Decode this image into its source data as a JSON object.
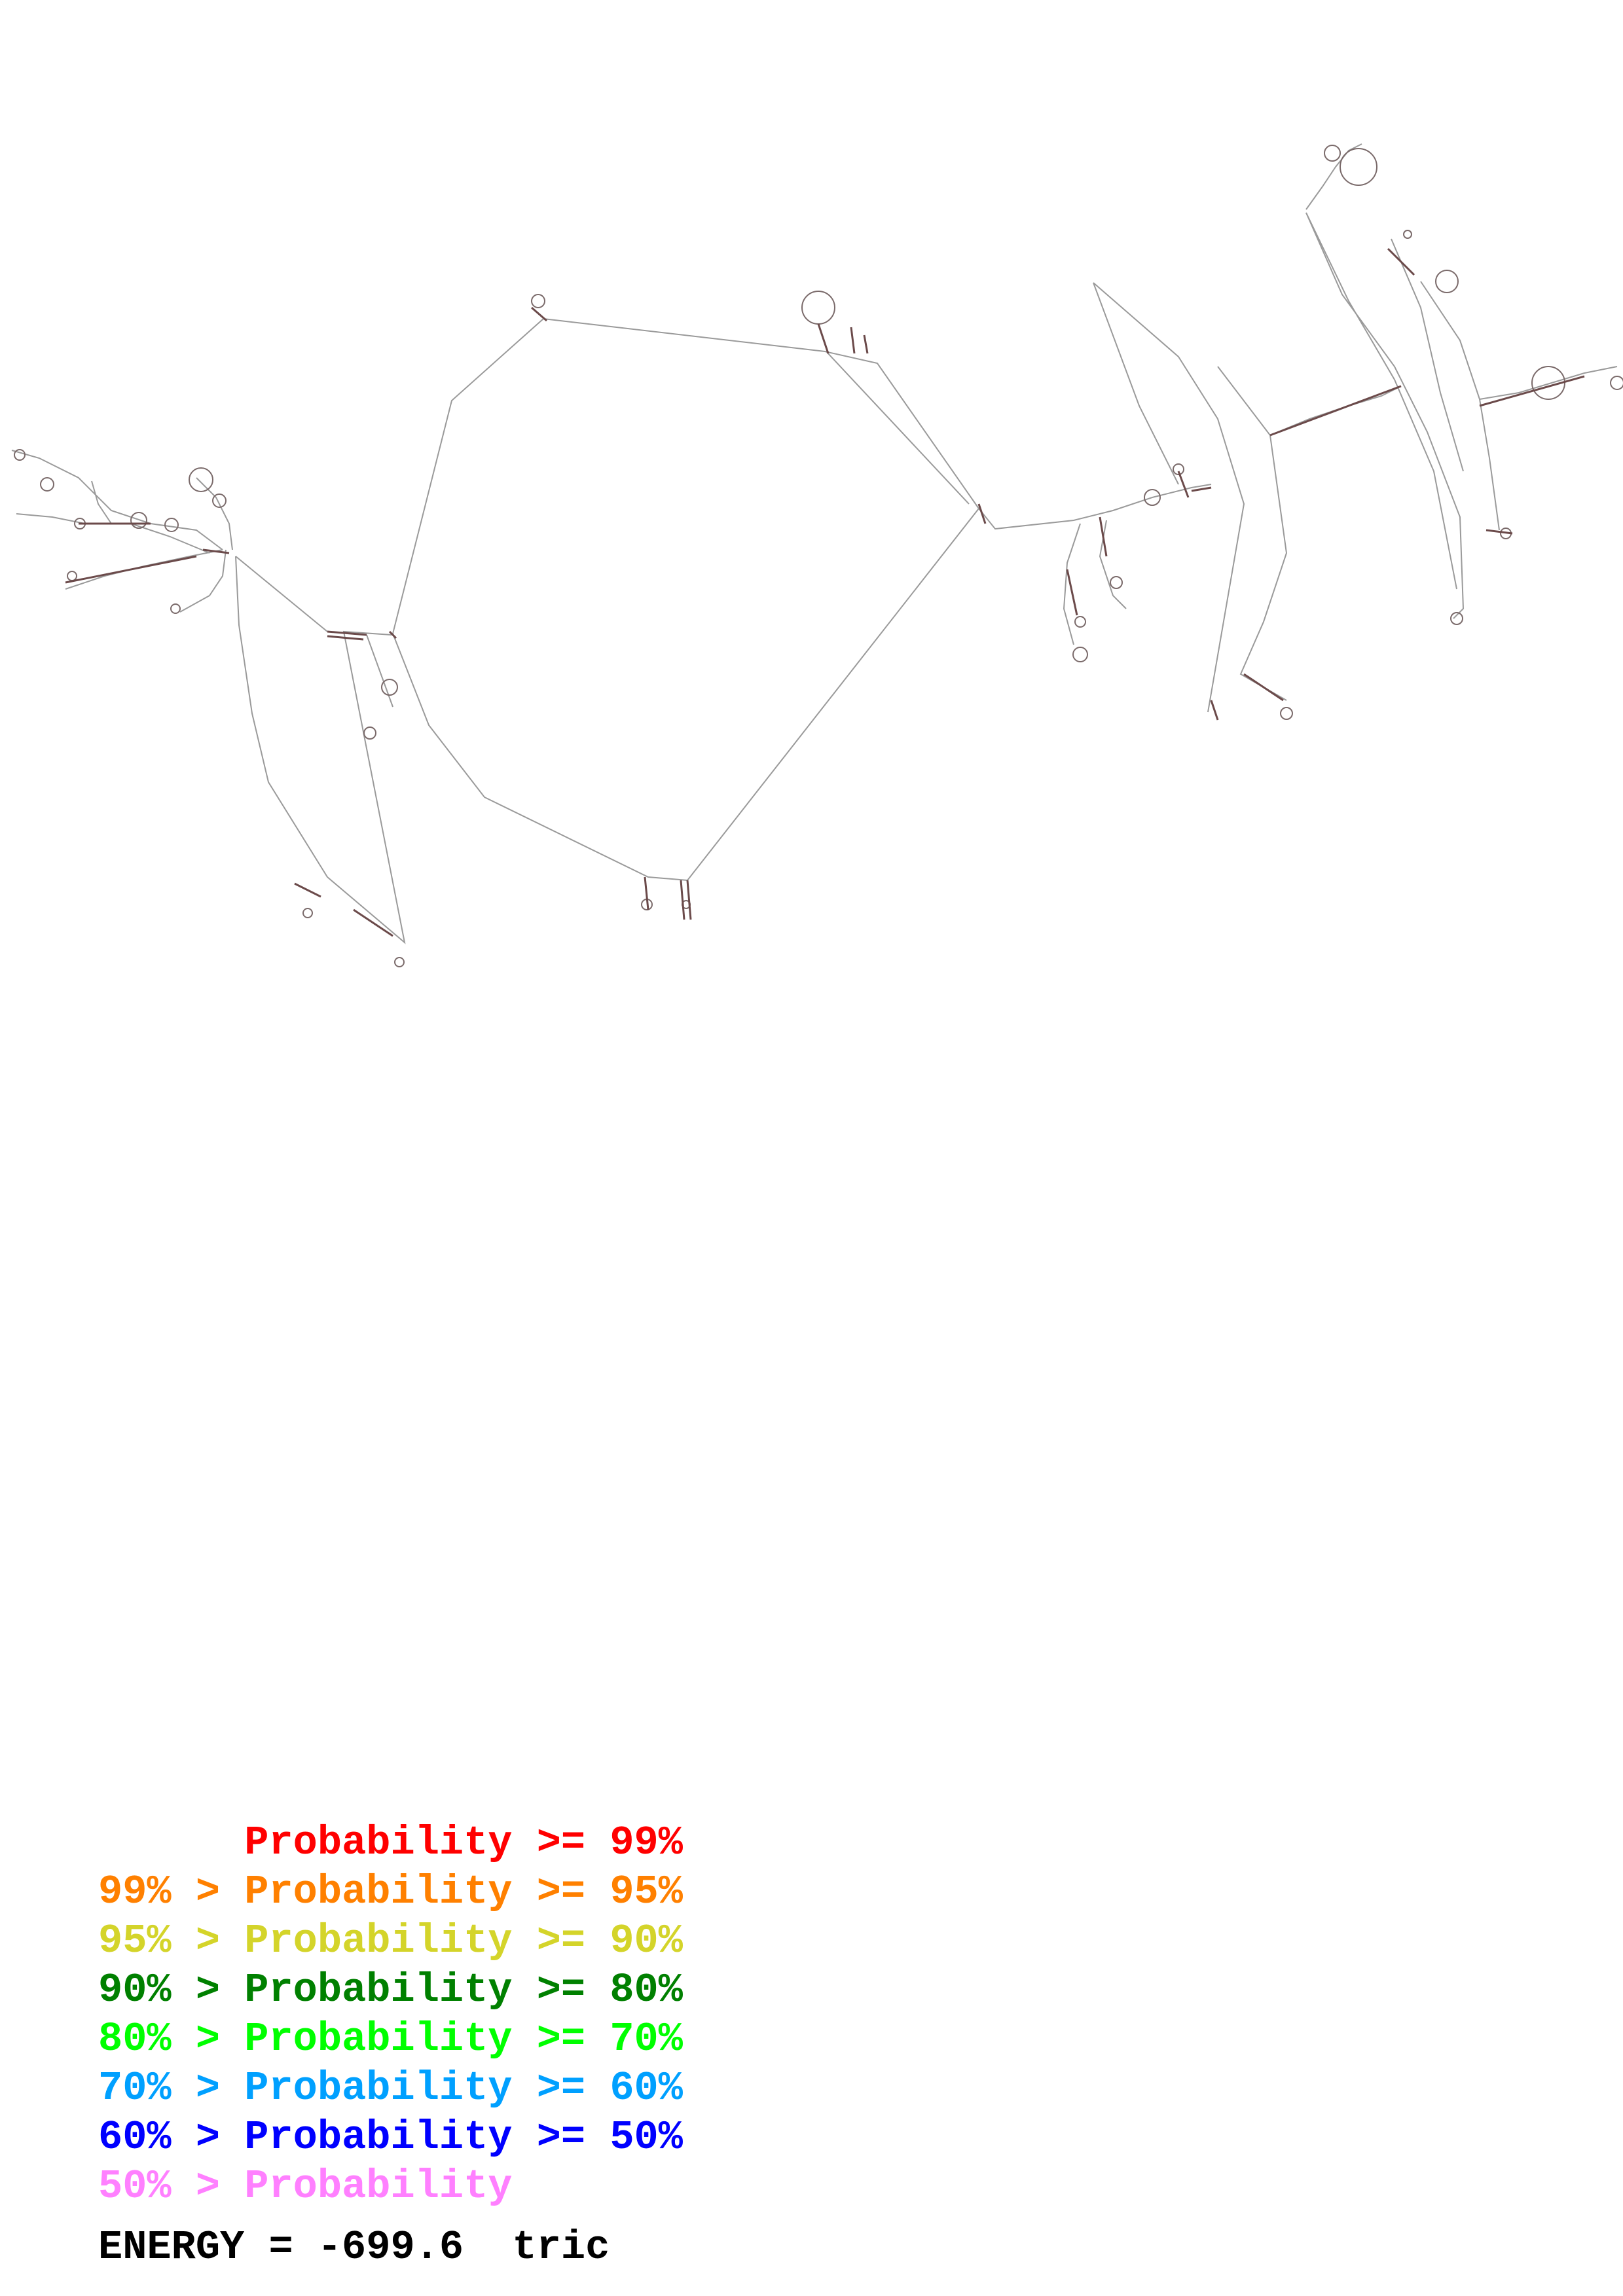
{
  "diagram": {
    "type": "rna-secondary-structure",
    "line_color": "#9a9a9a",
    "pair_color": "#6b4a4a"
  },
  "legend": [
    {
      "prefix": "    ",
      "range": "Probability >= 99%",
      "color": "#ff0000"
    },
    {
      "prefix": "99% > ",
      "range": "Probability >= 95%",
      "color": "#ff8000"
    },
    {
      "prefix": "95% > ",
      "range": "Probability >= 90%",
      "color": "#d4d42a"
    },
    {
      "prefix": "90% > ",
      "range": "Probability >= 80%",
      "color": "#008000"
    },
    {
      "prefix": "80% > ",
      "range": "Probability >= 70%",
      "color": "#00ff00"
    },
    {
      "prefix": "70% > ",
      "range": "Probability >= 60%",
      "color": "#00a0ff"
    },
    {
      "prefix": "60% > ",
      "range": "Probability >= 50%",
      "color": "#0000ff"
    },
    {
      "prefix": "50% > ",
      "range": "Probability",
      "color": "#ff80ff"
    }
  ],
  "energy": {
    "label": "ENERGY = -699.6  tric"
  }
}
